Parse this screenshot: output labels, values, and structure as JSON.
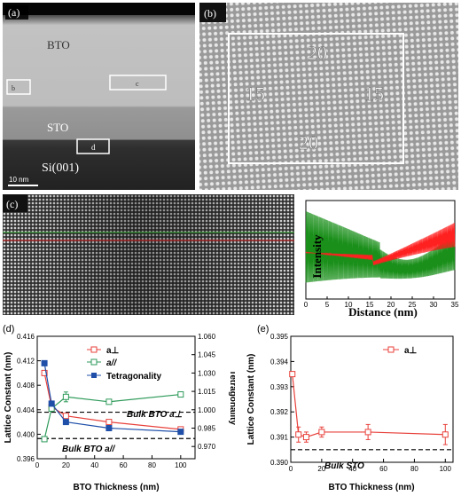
{
  "panel_a": {
    "label": "(a)",
    "texts": {
      "bto": "BTO",
      "sto": "STO",
      "si": "Si(001)",
      "scale": "10 nm",
      "box_b": "b",
      "box_c": "c",
      "box_d": "d"
    }
  },
  "panel_b": {
    "label": "(b)",
    "num_top": "20",
    "num_bottom": "20",
    "num_left": "15",
    "num_right": "15"
  },
  "panel_c": {
    "label": "(c)",
    "profile": {
      "ylabel": "Intensity",
      "xlabel": "Distance (nm)",
      "xticks": [
        "0",
        "5",
        "10",
        "15",
        "20",
        "25",
        "30",
        "35"
      ],
      "colors": {
        "red": "#ff2020",
        "green": "#1a8f1a"
      }
    }
  },
  "panel_d": {
    "label": "(d)",
    "legend": {
      "a_perp": "a⊥",
      "a_par": "a//",
      "tet": "Tetragonality"
    },
    "annot_perp": "Bulk BTO a⊥",
    "annot_par": "Bulk BTO a//",
    "chart_data": {
      "type": "line",
      "xlabel": "BTO Thickness (nm)",
      "ylabel": "Lattice Constant (nm)",
      "y2label": "Tetragonality",
      "xlim": [
        0,
        110
      ],
      "ylim": [
        0.396,
        0.416
      ],
      "y2lim": [
        0.96,
        1.06
      ],
      "xticks": [
        "0",
        "20",
        "40",
        "60",
        "80",
        "100"
      ],
      "yticks": [
        "0.396",
        "0.400",
        "0.404",
        "0.408",
        "0.412",
        "0.416"
      ],
      "y2ticks": [
        "0.970",
        "0.985",
        "1.000",
        "1.015",
        "1.030",
        "1.045",
        "1.060"
      ],
      "series": [
        {
          "name": "a⊥",
          "color": "#e8413b",
          "marker": "open-square",
          "x": [
            5,
            10,
            20,
            50,
            100
          ],
          "y": [
            0.41,
            0.4045,
            0.403,
            0.402,
            0.4008
          ]
        },
        {
          "name": "a//",
          "color": "#2e9a5a",
          "marker": "open-square",
          "x": [
            5,
            10,
            20,
            50,
            100
          ],
          "y": [
            0.3992,
            0.4042,
            0.4061,
            0.4053,
            0.4065
          ],
          "err": [
            0,
            0,
            0.0008,
            0,
            0
          ]
        },
        {
          "name": "Tetragonality",
          "color": "#1f4fa8",
          "marker": "filled-square",
          "axis": "right",
          "x": [
            5,
            10,
            20,
            50,
            100
          ],
          "y": [
            1.038,
            1.005,
            0.99,
            0.985,
            0.982
          ]
        }
      ],
      "ref_lines": [
        {
          "y": 0.4036
        },
        {
          "y": 0.3993
        }
      ]
    }
  },
  "panel_e": {
    "label": "(e)",
    "legend": {
      "a_perp": "a⊥"
    },
    "annot": "Bulk STO",
    "chart_data": {
      "type": "line",
      "xlabel": "BTO Thickness (nm)",
      "ylabel": "Lattice Constant (nm)",
      "xlim": [
        0,
        105
      ],
      "ylim": [
        0.39,
        0.395
      ],
      "xticks": [
        "0",
        "20",
        "40",
        "60",
        "80",
        "100"
      ],
      "yticks": [
        "0.390",
        "0.391",
        "0.392",
        "0.393",
        "0.394",
        "0.395"
      ],
      "series": [
        {
          "name": "a⊥",
          "color": "#e8413b",
          "marker": "open-square",
          "x": [
            1,
            5,
            10,
            20,
            50,
            100
          ],
          "y": [
            0.3935,
            0.3911,
            0.391,
            0.3912,
            0.3912,
            0.3911
          ],
          "err": [
            0,
            0.0003,
            0.0002,
            0.0002,
            0.0003,
            0.0004
          ]
        }
      ],
      "ref_lines": [
        {
          "y": 0.3905
        }
      ]
    }
  }
}
